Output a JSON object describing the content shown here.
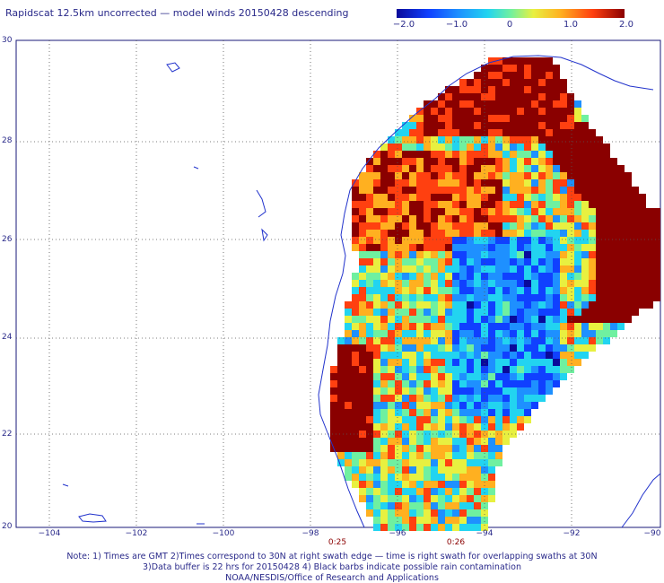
{
  "title": "Rapidscat 12.5km uncorrected — model winds 20150428 descending",
  "colorbar": {
    "ticks": [
      "−2.0",
      "−1.0",
      "0",
      "1.0",
      "2.0"
    ]
  },
  "axes": {
    "lat_labels": [
      "30",
      "28",
      "26",
      "24",
      "22",
      "20"
    ],
    "lon_labels": [
      "−104",
      "−102",
      "−100",
      "−98",
      "−96",
      "−94",
      "−92",
      "−90"
    ]
  },
  "swath_times": [
    "0:25",
    "0:26"
  ],
  "notes": {
    "line1": "Note: 1) Times are GMT 2)Times correspond to 30N at right swath edge — time is right swath for overlapping swaths at 30N",
    "line2": "3)Data buffer is 22 hrs for 20150428 4) Black barbs indicate possible rain contamination",
    "line3": "NOAA/NESDIS/Office of Research and Applications"
  }
}
